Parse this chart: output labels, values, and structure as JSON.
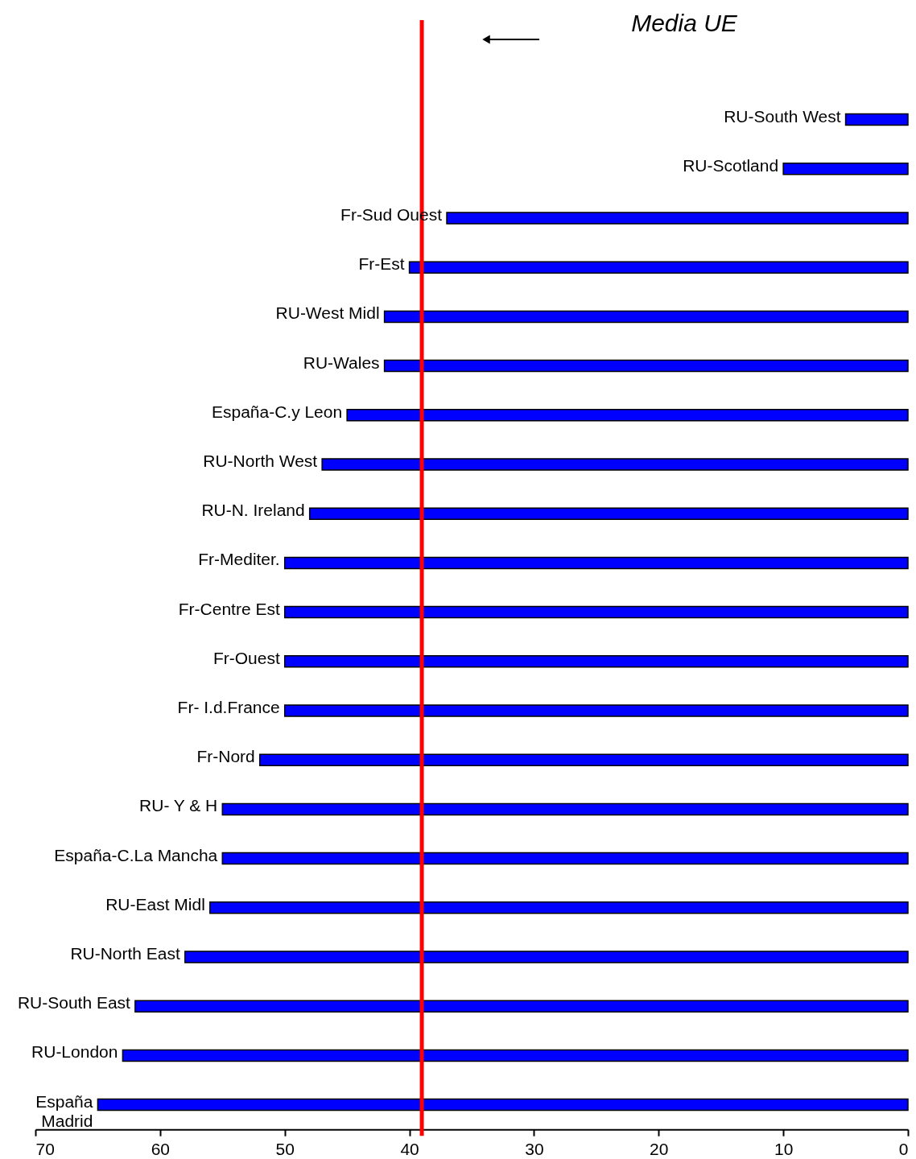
{
  "chart_data": {
    "type": "bar",
    "orientation": "horizontal",
    "categories": [
      "RU-South West",
      "RU-Scotland",
      "Fr-Sud Ouest",
      "Fr-Est",
      "RU-West Midl",
      "RU-Wales",
      "España-C.y Leon",
      "RU-North West",
      "RU-N. Ireland",
      "Fr-Mediter.",
      "Fr-Centre Est",
      "Fr-Ouest",
      "Fr- I.d.France",
      "Fr-Nord",
      "RU- Y & H",
      "España-C.La Mancha",
      "RU-East Midl",
      "RU-North East",
      "RU-South East",
      "RU-London",
      "España\nMadrid"
    ],
    "values": [
      5,
      10,
      37,
      40,
      42,
      42,
      45,
      47,
      48,
      50,
      50,
      50,
      50,
      52,
      55,
      55,
      56,
      58,
      62,
      63,
      65
    ],
    "color": "#0000ff",
    "xlim": [
      70,
      0
    ],
    "xticks": [
      70,
      60,
      50,
      40,
      30,
      20,
      10,
      0
    ],
    "grid": false,
    "legend": false,
    "annotations": [
      "Media UE"
    ],
    "ref_lines": [
      {
        "axis": "x",
        "value": 39,
        "color": "#ff0000"
      }
    ]
  }
}
